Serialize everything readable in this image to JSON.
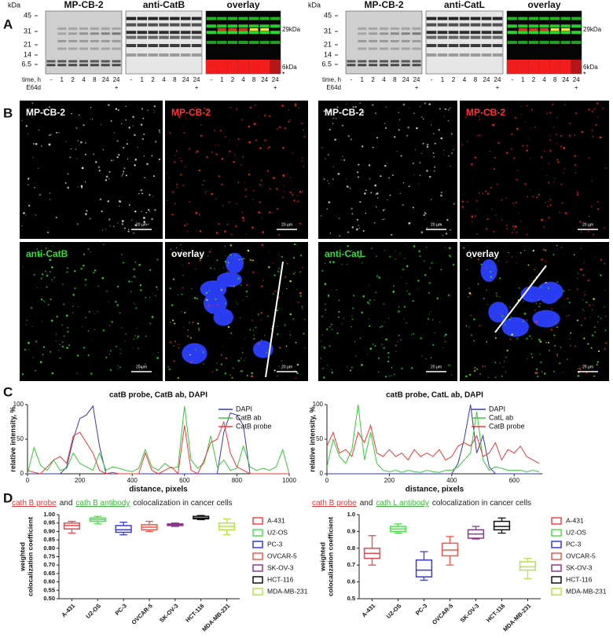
{
  "panel_labels": [
    "A",
    "B",
    "C",
    "D"
  ],
  "gels": {
    "kda": "kDa",
    "markers": [
      45,
      31,
      21,
      14,
      6.5
    ],
    "left_headings": [
      "MP-CB-2",
      "anti-CatB",
      "overlay"
    ],
    "right_headings": [
      "MP-CB-2",
      "anti-CatL",
      "overlay"
    ],
    "band_labels": [
      "29kDa",
      "6kDa"
    ],
    "asterisk": "*",
    "time_label": "time, h",
    "times": [
      "-",
      "1",
      "2",
      "4",
      "8",
      "24",
      "24"
    ],
    "e64d_label": "E64d",
    "e64d_mark": "+"
  },
  "micro": {
    "left": [
      "MP-CB-2",
      "MP-CB-2",
      "anti-CatB",
      "overlay"
    ],
    "right": [
      "MP-CB-2",
      "MP-CB-2",
      "anti-CatL",
      "overlay"
    ],
    "scale": "20 µm"
  },
  "chart_data": [
    {
      "type": "line",
      "title": "catB probe, CatB ab, DAPI",
      "x_label": "distance, pixels",
      "y_label": "relative intensity, %",
      "xlim": [
        0,
        1000
      ],
      "xticks": [
        0,
        200,
        400,
        600,
        800,
        1000
      ],
      "ylim": [
        0,
        100
      ],
      "yticks": [
        0,
        50,
        100
      ],
      "legend": "upper right",
      "x": [
        0,
        25,
        50,
        75,
        100,
        125,
        150,
        175,
        200,
        225,
        250,
        275,
        300,
        325,
        350,
        375,
        400,
        425,
        450,
        475,
        500,
        525,
        550,
        575,
        600,
        625,
        650,
        675,
        700,
        725,
        750,
        775,
        800,
        825,
        850,
        875,
        900,
        925,
        950,
        975,
        1000
      ],
      "series": [
        {
          "name": "DAPI",
          "color": "#3a3aa8",
          "values": [
            0,
            0,
            0,
            0,
            0,
            0,
            10,
            50,
            80,
            85,
            98,
            40,
            0,
            0,
            0,
            0,
            0,
            0,
            0,
            0,
            0,
            0,
            0,
            0,
            0,
            0,
            0,
            0,
            0,
            0,
            60,
            88,
            85,
            70,
            0,
            0,
            0,
            0,
            0,
            0,
            0
          ]
        },
        {
          "name": "CatB ab",
          "color": "#3cc83c",
          "values": [
            0,
            38,
            12,
            5,
            20,
            5,
            8,
            30,
            15,
            10,
            5,
            30,
            5,
            10,
            8,
            5,
            3,
            8,
            35,
            10,
            5,
            15,
            8,
            10,
            98,
            20,
            8,
            15,
            55,
            10,
            20,
            5,
            8,
            40,
            10,
            5,
            8,
            5,
            10,
            35,
            0
          ]
        },
        {
          "name": "CatB probe",
          "color": "#e83a3a",
          "values": [
            5,
            2,
            0,
            10,
            20,
            25,
            15,
            55,
            60,
            45,
            30,
            5,
            0,
            2,
            0,
            0,
            0,
            0,
            30,
            5,
            0,
            5,
            10,
            0,
            70,
            5,
            0,
            20,
            45,
            50,
            75,
            30,
            10,
            5,
            0,
            0,
            0,
            0,
            0,
            0,
            0
          ]
        }
      ]
    },
    {
      "type": "line",
      "title": "catB probe, CatL ab, DAPI",
      "x_label": "distance, pixels",
      "y_label": "relative intensity, %",
      "xlim": [
        0,
        690
      ],
      "xticks": [
        0,
        200,
        400,
        600
      ],
      "ylim": [
        0,
        100
      ],
      "yticks": [
        0,
        50,
        100
      ],
      "legend": "upper right",
      "x": [
        0,
        20,
        40,
        60,
        80,
        100,
        120,
        140,
        160,
        180,
        200,
        220,
        240,
        260,
        280,
        300,
        320,
        340,
        360,
        380,
        400,
        420,
        440,
        460,
        480,
        500,
        520,
        540,
        560,
        580,
        600,
        620,
        640,
        660,
        680
      ],
      "series": [
        {
          "name": "DAPI",
          "color": "#3a3aa8",
          "values": [
            0,
            0,
            0,
            0,
            0,
            0,
            0,
            0,
            0,
            0,
            0,
            0,
            0,
            0,
            0,
            0,
            0,
            0,
            0,
            0,
            0,
            15,
            50,
            100,
            30,
            55,
            10,
            0,
            0,
            0,
            0,
            0,
            0,
            0,
            0
          ]
        },
        {
          "name": "CatL ab",
          "color": "#3cc83c",
          "values": [
            10,
            50,
            25,
            15,
            35,
            100,
            20,
            60,
            15,
            5,
            3,
            5,
            2,
            5,
            3,
            2,
            5,
            3,
            2,
            5,
            5,
            10,
            20,
            30,
            90,
            20,
            5,
            10,
            8,
            5,
            5,
            5,
            3,
            5,
            3
          ]
        },
        {
          "name": "CatB probe",
          "color": "#e83a3a",
          "values": [
            40,
            60,
            30,
            35,
            25,
            60,
            45,
            70,
            30,
            25,
            35,
            25,
            30,
            20,
            35,
            25,
            30,
            25,
            35,
            20,
            25,
            40,
            45,
            40,
            55,
            25,
            30,
            45,
            20,
            35,
            30,
            40,
            25,
            20,
            15
          ]
        }
      ]
    },
    {
      "type": "box",
      "title_parts": [
        {
          "text": "cath B probe",
          "color": "#e03a3a"
        },
        {
          "text": "and",
          "color": "#222"
        },
        {
          "text": "cath B antibody",
          "color": "#3cb83c"
        },
        {
          "text": "colocalization in cancer cells",
          "color": "#222"
        }
      ],
      "y_label": [
        "weighted",
        "colocalization coefficient"
      ],
      "ylim": [
        0.5,
        1.0
      ],
      "yticks": [
        {
          "value": 0.5,
          "label": "0.50"
        },
        {
          "value": 0.55,
          "label": "0.55"
        },
        {
          "value": 0.6,
          "label": "0.60"
        },
        {
          "value": 0.65,
          "label": "0.65"
        },
        {
          "value": 0.7,
          "label": "0.70"
        },
        {
          "value": 0.75,
          "label": "0.75"
        },
        {
          "value": 0.8,
          "label": "0.80"
        },
        {
          "value": 0.85,
          "label": "0.85"
        },
        {
          "value": 0.9,
          "label": "0.90"
        },
        {
          "value": 0.95,
          "label": "0.95"
        },
        {
          "value": 1.0,
          "label": "1.00"
        }
      ],
      "categories": [
        "A-431",
        "U2-OS",
        "PC-3",
        "OVCAR-5",
        "SK-OV-3",
        "HCT-116",
        "MDA-MB-231"
      ],
      "colors": [
        "#e8484f",
        "#4fe04f",
        "#3b3bd6",
        "#ee5a4b",
        "#8b3a8b",
        "#111111",
        "#b7e34a"
      ],
      "boxes": [
        {
          "min": 0.89,
          "q1": 0.915,
          "median": 0.935,
          "q3": 0.95,
          "max": 0.96
        },
        {
          "min": 0.945,
          "q1": 0.96,
          "median": 0.97,
          "q3": 0.98,
          "max": 0.99
        },
        {
          "min": 0.88,
          "q1": 0.895,
          "median": 0.91,
          "q3": 0.935,
          "max": 0.955
        },
        {
          "min": 0.9,
          "q1": 0.91,
          "median": 0.925,
          "q3": 0.94,
          "max": 0.96
        },
        {
          "min": 0.93,
          "q1": 0.935,
          "median": 0.94,
          "q3": 0.945,
          "max": 0.95
        },
        {
          "min": 0.97,
          "q1": 0.975,
          "median": 0.98,
          "q3": 0.99,
          "max": 0.995
        },
        {
          "min": 0.88,
          "q1": 0.91,
          "median": 0.93,
          "q3": 0.95,
          "max": 0.975
        }
      ]
    },
    {
      "type": "box",
      "title_parts": [
        {
          "text": "cath B probe",
          "color": "#e03a3a"
        },
        {
          "text": "and",
          "color": "#222"
        },
        {
          "text": "cath L antibody",
          "color": "#3cb83c"
        },
        {
          "text": "colocalization in cancer cells",
          "color": "#222"
        }
      ],
      "y_label": [
        "weighted",
        "colocalization coefficient"
      ],
      "ylim": [
        0.5,
        1.0
      ],
      "yticks": [
        0.5,
        0.6,
        0.7,
        0.8,
        0.9,
        {
          "value": 1.0,
          "label": "1.0"
        }
      ],
      "categories": [
        "A-431",
        "U2-OS",
        "PC-3",
        "OVCAR-5",
        "SK-OV-3",
        "HCT-116",
        "MDA-MB-231"
      ],
      "colors": [
        "#e8484f",
        "#4fe04f",
        "#3b3bd6",
        "#ee5a4b",
        "#8b3a8b",
        "#111111",
        "#b7e34a"
      ],
      "boxes": [
        {
          "min": 0.7,
          "q1": 0.74,
          "median": 0.77,
          "q3": 0.8,
          "max": 0.875
        },
        {
          "min": 0.89,
          "q1": 0.9,
          "median": 0.915,
          "q3": 0.93,
          "max": 0.945
        },
        {
          "min": 0.61,
          "q1": 0.63,
          "median": 0.67,
          "q3": 0.73,
          "max": 0.78
        },
        {
          "min": 0.7,
          "q1": 0.755,
          "median": 0.79,
          "q3": 0.83,
          "max": 0.87
        },
        {
          "min": 0.855,
          "q1": 0.86,
          "median": 0.885,
          "q3": 0.91,
          "max": 0.93
        },
        {
          "min": 0.89,
          "q1": 0.91,
          "median": 0.93,
          "q3": 0.96,
          "max": 0.98
        },
        {
          "min": 0.62,
          "q1": 0.67,
          "median": 0.69,
          "q3": 0.72,
          "max": 0.74
        }
      ]
    }
  ]
}
